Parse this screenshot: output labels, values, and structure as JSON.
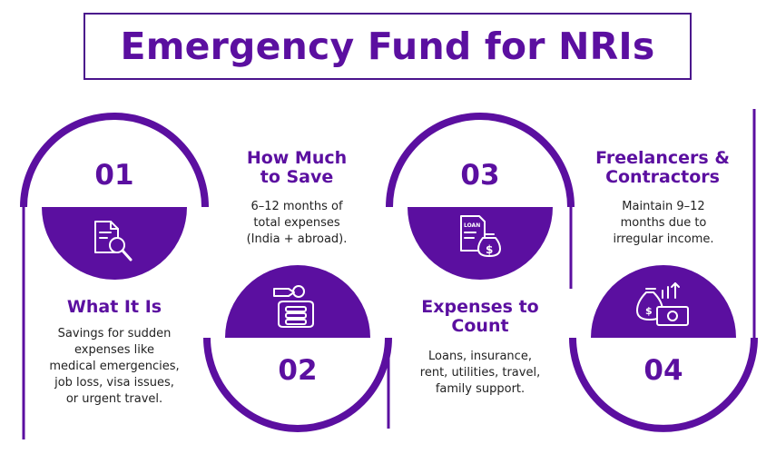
{
  "title": "Emergency Fund for NRIs",
  "colors": {
    "primary": "#5b0fa0",
    "border": "#4a148c",
    "text": "#222222",
    "background": "#ffffff"
  },
  "steps": [
    {
      "number": "01",
      "heading": [
        "What It Is"
      ],
      "description": [
        "Savings for sudden",
        "expenses like",
        "medical emergencies,",
        "job loss, visa issues,",
        "or urgent travel."
      ],
      "icon": "document-search-icon"
    },
    {
      "number": "02",
      "heading": [
        "How Much",
        "to Save"
      ],
      "description": [
        "6–12 months of",
        "total expenses",
        "(India + abroad)."
      ],
      "icon": "coins-wallet-icon"
    },
    {
      "number": "03",
      "heading": [
        "Expenses to",
        "Count"
      ],
      "description": [
        "Loans, insurance,",
        "rent, utilities, travel,",
        "family support."
      ],
      "icon": "loan-document-icon"
    },
    {
      "number": "04",
      "heading": [
        "Freelancers &",
        "Contractors"
      ],
      "description": [
        "Maintain 9–12",
        "months due to",
        "irregular income."
      ],
      "icon": "money-bag-growth-icon"
    }
  ]
}
